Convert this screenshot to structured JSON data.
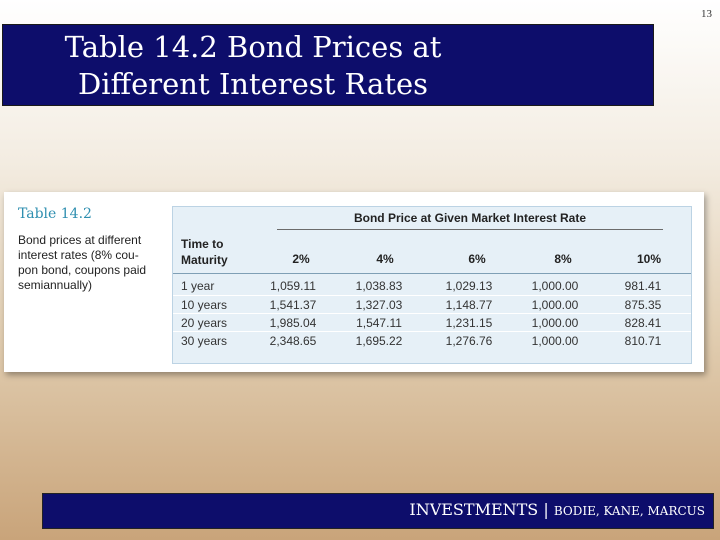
{
  "slide": {
    "title_line1": "Table 14.2 Bond Prices at",
    "title_line2": "Different Interest Rates",
    "number": "13"
  },
  "table": {
    "label": "Table 14.2",
    "caption": "Bond prices at different\ninterest rates (8% cou-\npon bond, coupons paid\nsemiannually)",
    "group_header": "Bond Price at Given Market Interest Rate",
    "row_header": "Time to\nMaturity",
    "columns": [
      "2%",
      "4%",
      "6%",
      "8%",
      "10%"
    ],
    "rows": [
      {
        "maturity": "1 year",
        "values": [
          "1,059.11",
          "1,038.83",
          "1,029.13",
          "1,000.00",
          "981.41"
        ]
      },
      {
        "maturity": "10 years",
        "values": [
          "1,541.37",
          "1,327.03",
          "1,148.77",
          "1,000.00",
          "875.35"
        ]
      },
      {
        "maturity": "20 years",
        "values": [
          "1,985.04",
          "1,547.11",
          "1,231.15",
          "1,000.00",
          "828.41"
        ]
      },
      {
        "maturity": "30 years",
        "values": [
          "2,348.65",
          "1,695.22",
          "1,276.76",
          "1,000.00",
          "810.71"
        ]
      }
    ]
  },
  "footer": {
    "book": "INVESTMENTS",
    "separator": " | ",
    "authors": "BODIE, KANE, MARCUS"
  },
  "colors": {
    "title_bar": "#0d0d6b",
    "table_label": "#2f8fb0",
    "panel_bg": "#e6f0f7"
  }
}
